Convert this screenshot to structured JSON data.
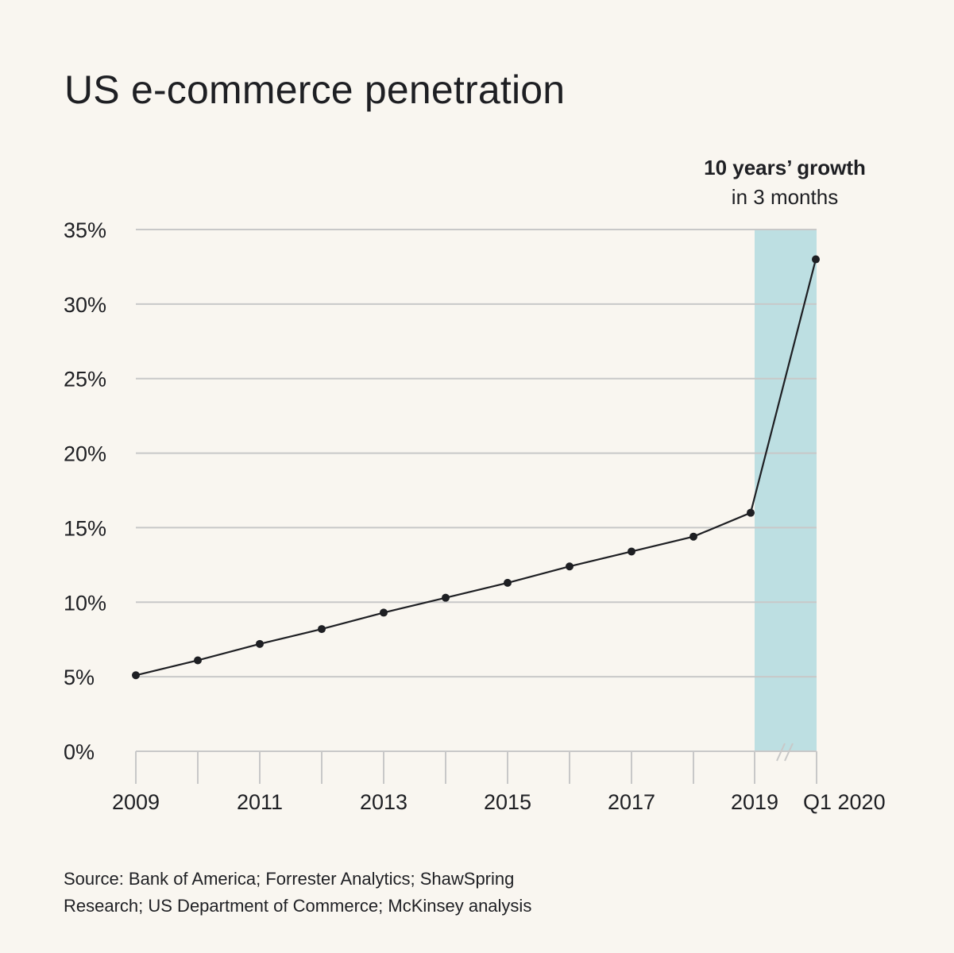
{
  "title": "US e-commerce penetration",
  "source": {
    "line1": "Source: Bank of America; Forrester Analytics; ShawSpring",
    "line2": "Research; US Department of Commerce; McKinsey analysis"
  },
  "colors": {
    "background": "#f9f6f0",
    "line": "#1e1f23",
    "grid": "#c8c8c8",
    "highlight": "#bddfe2"
  },
  "chart_data": {
    "type": "line",
    "title": "US e-commerce penetration",
    "xlabel": "",
    "ylabel": "",
    "x": [
      "2009",
      "2010",
      "2011",
      "2012",
      "2013",
      "2014",
      "2015",
      "2016",
      "2017",
      "2018",
      "2019",
      "Q1 2020"
    ],
    "x_tick_labels": [
      "2009",
      "",
      "2011",
      "",
      "2013",
      "",
      "2015",
      "",
      "2017",
      "",
      "2019",
      "Q1 2020"
    ],
    "series": [
      {
        "name": "US e-commerce penetration (%)",
        "values": [
          5.1,
          6.1,
          7.2,
          8.2,
          9.3,
          10.3,
          11.3,
          12.4,
          13.4,
          14.4,
          16.0,
          33.0
        ]
      }
    ],
    "ylim": [
      0,
      35
    ],
    "y_ticks": [
      0,
      5,
      10,
      15,
      20,
      25,
      30,
      35
    ],
    "y_tick_labels": [
      "0%",
      "5%",
      "10%",
      "15%",
      "20%",
      "25%",
      "30%",
      "35%"
    ],
    "grid": true,
    "axis_break": "between 2019 and Q1 2020",
    "highlight_region": {
      "from": "2019",
      "to": "Q1 2020"
    },
    "annotation": {
      "bold": "10 years’ growth",
      "regular": "in 3 months",
      "position": "top-right above highlight"
    }
  }
}
